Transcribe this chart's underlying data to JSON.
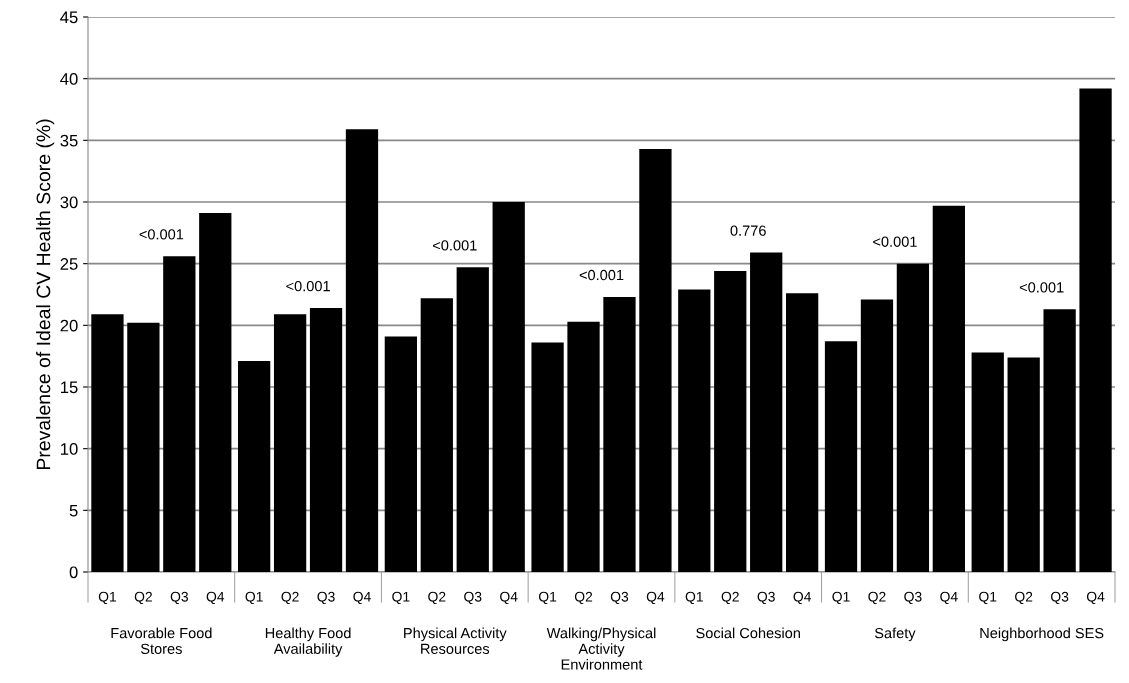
{
  "chart_data": {
    "type": "bar",
    "ylabel": "Prevalence of Ideal CV Health Score (%)",
    "categories": [
      "Favorable Food\nStores",
      "Healthy Food\nAvailability",
      "Physical Activity\nResources",
      "Walking/Physical\nActivity\nEnvironment",
      "Social Cohesion",
      "Safety",
      "Neighborhood SES"
    ],
    "series": [
      {
        "name": "Q1",
        "color": "#000000",
        "values": [
          20.9,
          17.1,
          19.1,
          18.6,
          22.9,
          18.7,
          17.8
        ]
      },
      {
        "name": "Q2",
        "color": "#000000",
        "values": [
          20.2,
          20.9,
          22.2,
          20.3,
          24.4,
          22.1,
          17.4
        ]
      },
      {
        "name": "Q3",
        "color": "#000000",
        "values": [
          25.6,
          21.4,
          24.7,
          22.3,
          25.9,
          25.0,
          21.3
        ]
      },
      {
        "name": "Q4",
        "color": "#000000",
        "values": [
          29.1,
          35.9,
          30.0,
          34.3,
          22.6,
          29.7,
          39.2
        ]
      }
    ],
    "annotations": [
      "<0.001",
      "<0.001",
      "<0.001",
      "<0.001",
      "0.776",
      "<0.001",
      "<0.001"
    ],
    "ylim": [
      0,
      45
    ],
    "yticks": [
      0,
      5,
      10,
      15,
      20,
      25,
      30,
      35,
      40,
      45
    ],
    "grid": "y",
    "legend": false
  }
}
